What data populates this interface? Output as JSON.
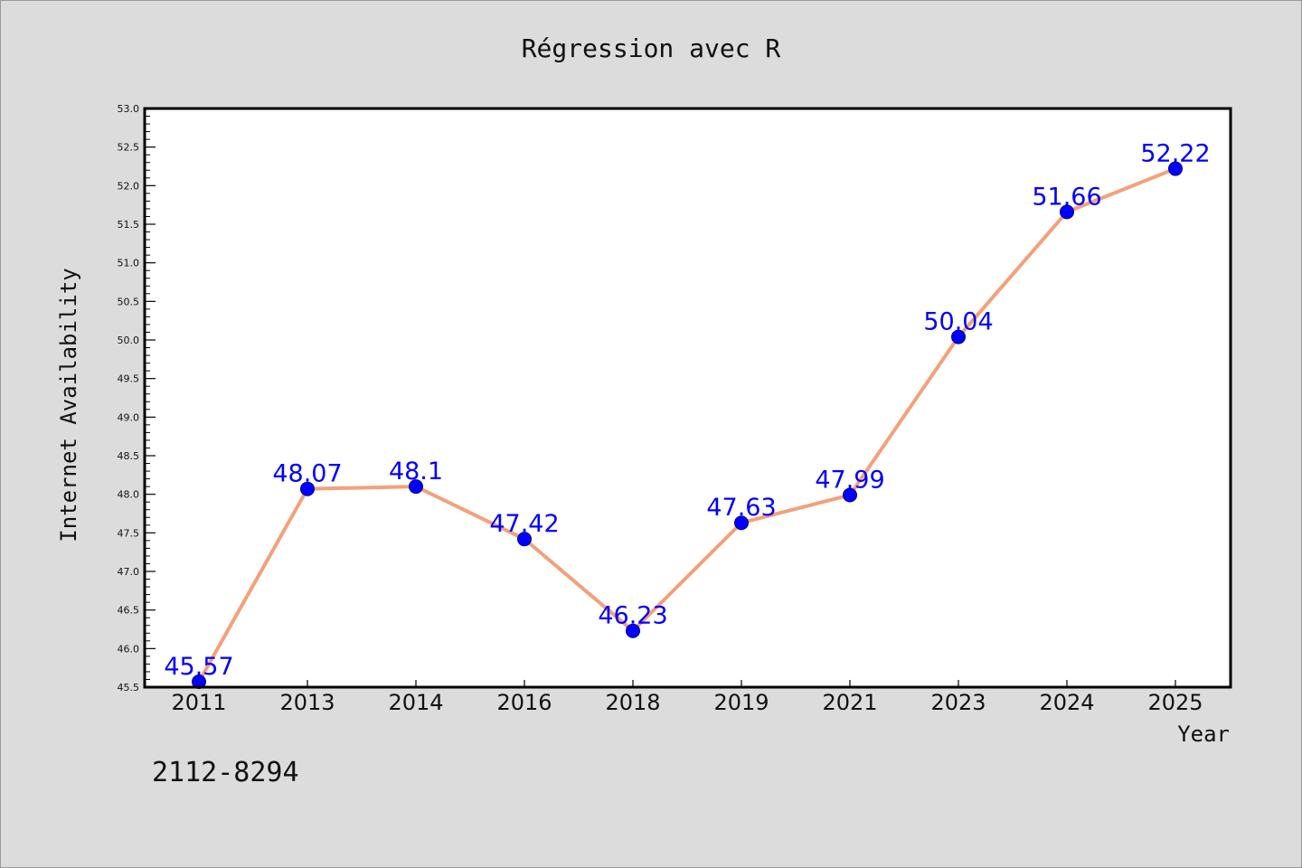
{
  "chart_data": {
    "type": "line",
    "title": "Régression avec R",
    "xlabel": "Year",
    "ylabel": "Internet Availability",
    "categories": [
      "2011",
      "2013",
      "2014",
      "2016",
      "2018",
      "2019",
      "2021",
      "2023",
      "2024",
      "2025"
    ],
    "series": [
      {
        "values": [
          45.57,
          48.07,
          48.1,
          47.42,
          46.23,
          47.63,
          47.99,
          50.04,
          51.66,
          52.22
        ],
        "labels": [
          "45.57",
          "48.07",
          "48.1",
          "47.42",
          "46.23",
          "47.63",
          "47.99",
          "50.04",
          "51.66",
          "52.22"
        ],
        "line_color": "#f4a07a",
        "marker_color": "#0000ff"
      }
    ],
    "ylim": [
      45.5,
      53.0
    ],
    "yticks": [
      "45.5",
      "46.0",
      "46.5",
      "47.0",
      "47.5",
      "48.0",
      "48.5",
      "49.0",
      "49.5",
      "50.0",
      "50.5",
      "51.0",
      "51.5",
      "52.0",
      "52.5",
      "53.0"
    ],
    "grid": false,
    "legend": "none"
  },
  "annotation": "2112-8294",
  "colors": {
    "background": "#dcdcdc",
    "plot_background": "#ffffff",
    "line": "#f4a07a",
    "marker": "#0000ff",
    "data_label": "#0000ff"
  }
}
